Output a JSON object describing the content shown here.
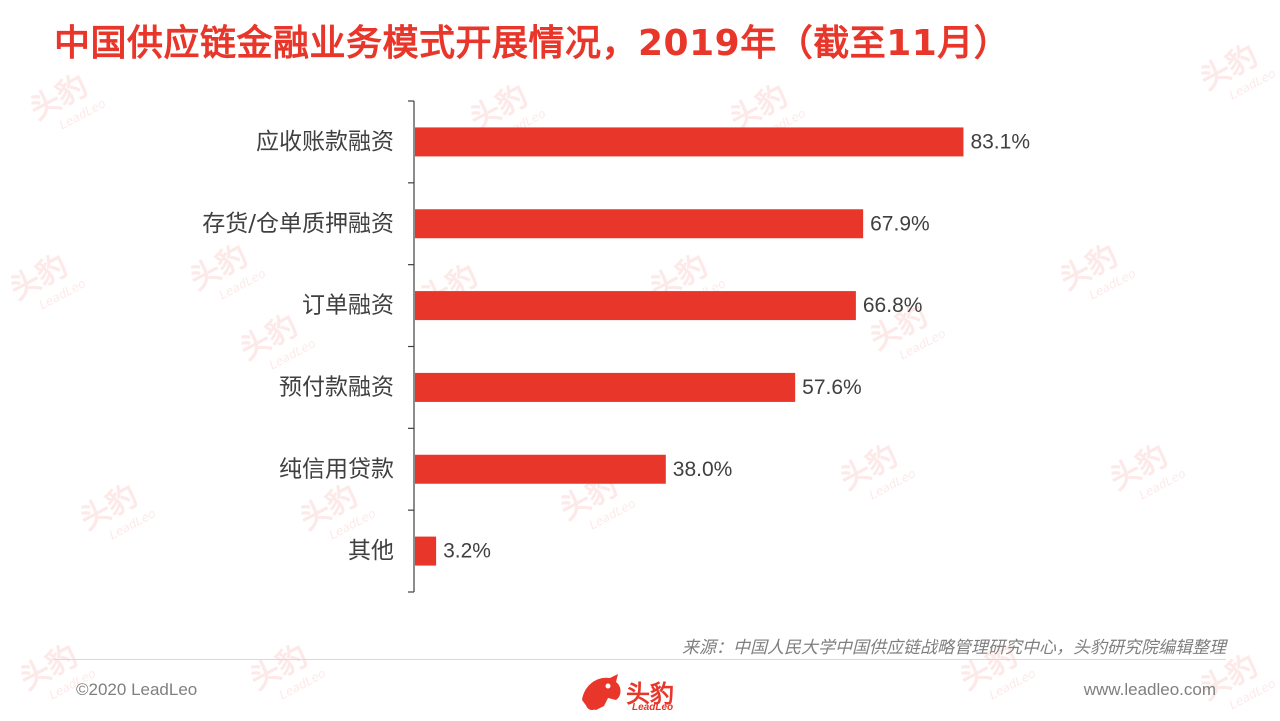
{
  "page": {
    "title": "中国供应链金融业务模式开展情况，2019年（截至11月）",
    "source": "来源：中国人民大学中国供应链战略管理研究中心，头豹研究院编辑整理",
    "copyright": "©2020 LeadLeo",
    "website": "www.leadleo.com",
    "logo_cn": "头豹",
    "logo_en": "LeadLeo",
    "accent_color": "#e8362a"
  },
  "watermark": {
    "cn": "头豹",
    "en": "LeadLeo"
  },
  "chart_data": {
    "type": "bar",
    "orientation": "horizontal",
    "categories": [
      "应收账款融资",
      "存货/仓单质押融资",
      "订单融资",
      "预付款融资",
      "纯信用贷款",
      "其他"
    ],
    "values": [
      83.1,
      67.9,
      66.8,
      57.6,
      38.0,
      3.2
    ],
    "value_labels": [
      "83.1%",
      "67.9%",
      "66.8%",
      "57.6%",
      "38.0%",
      "3.2%"
    ],
    "xlim": [
      0,
      100
    ],
    "bar_color": "#e8362a",
    "grid": false,
    "legend": "none"
  }
}
